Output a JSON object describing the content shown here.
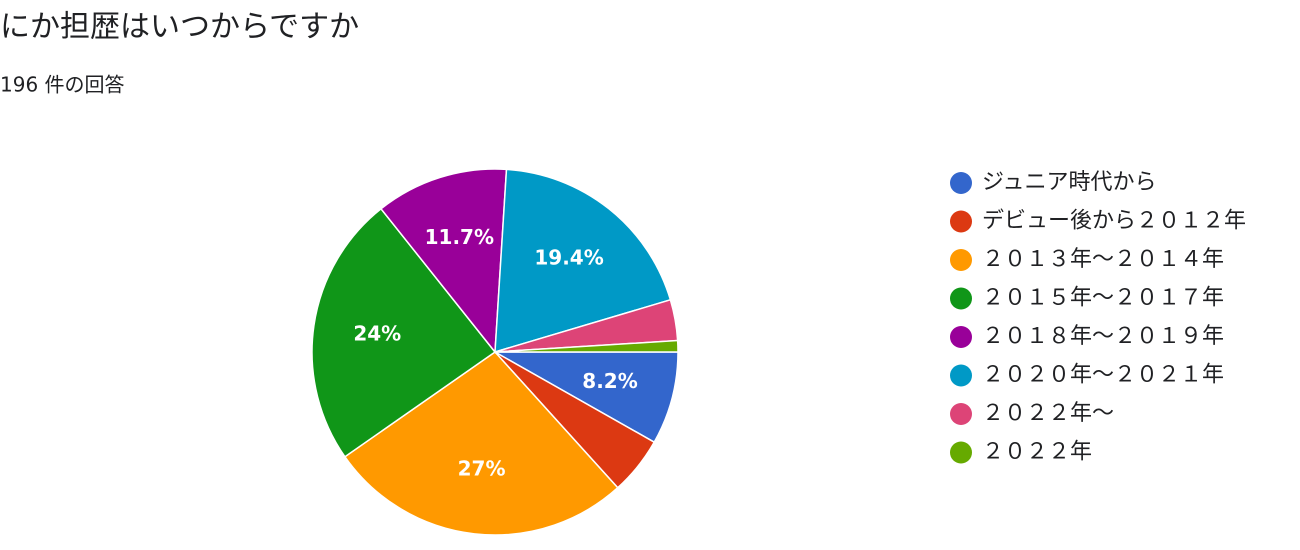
{
  "chart_data": {
    "type": "pie",
    "title": "にか担歴はいつからですか",
    "subtitle": "196 件の回答",
    "categories": [
      "ジュニア時代から",
      "デビュー後から２０１２年",
      "２０１３年～２０１４年",
      "２０１５年～２０１７年",
      "２０１８年～２０１９年",
      "２０２０年～２０２１年",
      "２０２２年～",
      "２０２２年"
    ],
    "values": [
      8.2,
      5.1,
      27,
      24,
      11.7,
      19.4,
      3.6,
      1.0
    ],
    "value_labels": [
      "8.2%",
      null,
      "27%",
      "24%",
      "11.7%",
      "19.4%",
      null,
      null
    ],
    "colors": [
      "#3366cc",
      "#dc3912",
      "#ff9900",
      "#109618",
      "#990099",
      "#0099c6",
      "#dd4477",
      "#66aa00"
    ],
    "legend": "right"
  }
}
